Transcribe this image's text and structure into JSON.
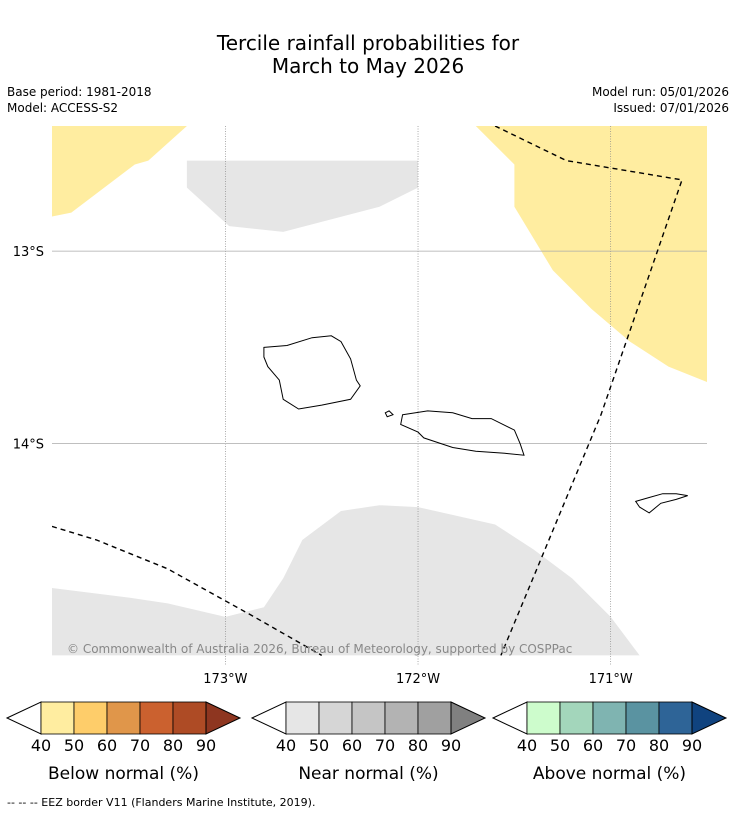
{
  "header": {
    "title_line1": "Tercile rainfall probabilities for",
    "title_line2": "March to May 2026",
    "base_period": "Base period: 1981-2018",
    "model": "Model: ACCESS-S2",
    "model_run": "Model run: 05/01/2026",
    "issued": "Issued: 07/01/2026"
  },
  "copyright": "© Commonwealth of Australia 2026, Bureau of Meteorology, supported by COSPPac",
  "footnote": "--  --  -- EEZ border V11 (Flanders Marine Institute, 2019).",
  "colors": {
    "land_outline": "#000000",
    "grid": "#888888",
    "eez": "#000000",
    "below_50": "#ffeda0",
    "near_40": "#e6e6e6"
  },
  "chart_data": {
    "type": "map",
    "title": "Tercile rainfall probabilities for March to May 2026",
    "region": "Samoa and American Samoa",
    "lon_range": [
      -173.9,
      -170.5
    ],
    "lat_range": [
      -12.35,
      -15.15
    ],
    "xticks": [
      {
        "lon": -173,
        "label": "173°W"
      },
      {
        "lon": -172,
        "label": "172°W"
      },
      {
        "lon": -171,
        "label": "171°W"
      }
    ],
    "yticks": [
      {
        "lat": -13,
        "label": "13°S"
      },
      {
        "lat": -14,
        "label": "14°S"
      }
    ],
    "probability_regions": [
      {
        "name": "below-normal-50-north",
        "category": "Below normal",
        "level": "40-50%",
        "poly": [
          [
            -173.9,
            -12.35
          ],
          [
            -173.2,
            -12.35
          ],
          [
            -173.4,
            -12.53
          ],
          [
            -173.47,
            -12.55
          ],
          [
            -173.8,
            -12.8
          ],
          [
            -173.9,
            -12.82
          ]
        ]
      },
      {
        "name": "below-normal-50-northeast",
        "category": "Below normal",
        "level": "40-50%",
        "poly": [
          [
            -172.6,
            -12.35
          ],
          [
            -171.9,
            -12.35
          ],
          [
            -171.7,
            -12.35
          ],
          [
            -171.5,
            -12.55
          ],
          [
            -171.5,
            -12.77
          ],
          [
            -171.3,
            -13.1
          ],
          [
            -171.1,
            -13.3
          ],
          [
            -170.9,
            -13.47
          ],
          [
            -170.7,
            -13.6
          ],
          [
            -170.5,
            -13.68
          ],
          [
            -170.5,
            -12.35
          ]
        ]
      },
      {
        "name": "near-normal-40-north",
        "category": "Near normal",
        "level": "40-50%",
        "poly": [
          [
            -173.2,
            -12.53
          ],
          [
            -172.0,
            -12.53
          ],
          [
            -172.0,
            -12.67
          ],
          [
            -172.2,
            -12.77
          ],
          [
            -172.7,
            -12.9
          ],
          [
            -172.98,
            -12.87
          ],
          [
            -173.2,
            -12.67
          ]
        ]
      },
      {
        "name": "near-normal-40-south",
        "category": "Near normal",
        "level": "40-50%",
        "poly": [
          [
            -173.9,
            -15.1
          ],
          [
            -173.9,
            -14.75
          ],
          [
            -173.5,
            -14.8
          ],
          [
            -173.3,
            -14.83
          ],
          [
            -173.0,
            -14.9
          ],
          [
            -172.8,
            -14.85
          ],
          [
            -172.7,
            -14.7
          ],
          [
            -172.6,
            -14.5
          ],
          [
            -172.4,
            -14.35
          ],
          [
            -172.2,
            -14.32
          ],
          [
            -172.0,
            -14.33
          ],
          [
            -171.6,
            -14.42
          ],
          [
            -171.4,
            -14.55
          ],
          [
            -171.2,
            -14.7
          ],
          [
            -171.0,
            -14.9
          ],
          [
            -170.85,
            -15.1
          ],
          [
            -173.9,
            -15.1
          ]
        ]
      }
    ],
    "islands": [
      {
        "name": "savaii",
        "poly": [
          [
            -172.8,
            -13.5
          ],
          [
            -172.68,
            -13.49
          ],
          [
            -172.55,
            -13.45
          ],
          [
            -172.45,
            -13.44
          ],
          [
            -172.4,
            -13.47
          ],
          [
            -172.35,
            -13.56
          ],
          [
            -172.32,
            -13.67
          ],
          [
            -172.3,
            -13.7
          ],
          [
            -172.35,
            -13.77
          ],
          [
            -172.5,
            -13.8
          ],
          [
            -172.62,
            -13.82
          ],
          [
            -172.7,
            -13.77
          ],
          [
            -172.72,
            -13.67
          ],
          [
            -172.78,
            -13.6
          ],
          [
            -172.8,
            -13.55
          ]
        ]
      },
      {
        "name": "upolu",
        "poly": [
          [
            -172.08,
            -13.85
          ],
          [
            -171.95,
            -13.83
          ],
          [
            -171.82,
            -13.84
          ],
          [
            -171.72,
            -13.87
          ],
          [
            -171.62,
            -13.87
          ],
          [
            -171.5,
            -13.93
          ],
          [
            -171.47,
            -14.0
          ],
          [
            -171.45,
            -14.06
          ],
          [
            -171.55,
            -14.05
          ],
          [
            -171.7,
            -14.04
          ],
          [
            -171.82,
            -14.02
          ],
          [
            -171.97,
            -13.97
          ],
          [
            -172.0,
            -13.94
          ],
          [
            -172.09,
            -13.9
          ]
        ]
      },
      {
        "name": "manono-apolima",
        "poly": [
          [
            -172.17,
            -13.84
          ],
          [
            -172.15,
            -13.83
          ],
          [
            -172.13,
            -13.85
          ],
          [
            -172.16,
            -13.86
          ]
        ]
      },
      {
        "name": "tutuila",
        "poly": [
          [
            -170.87,
            -14.3
          ],
          [
            -170.8,
            -14.28
          ],
          [
            -170.73,
            -14.26
          ],
          [
            -170.66,
            -14.26
          ],
          [
            -170.6,
            -14.27
          ],
          [
            -170.66,
            -14.29
          ],
          [
            -170.74,
            -14.31
          ],
          [
            -170.8,
            -14.36
          ],
          [
            -170.85,
            -14.33
          ]
        ]
      }
    ],
    "eez_lines": [
      {
        "name": "eez-samoa-as",
        "points": [
          [
            -171.6,
            -12.35
          ],
          [
            -171.23,
            -12.53
          ],
          [
            -170.63,
            -12.63
          ],
          [
            -171.05,
            -13.85
          ],
          [
            -171.57,
            -15.1
          ]
        ]
      },
      {
        "name": "eez-tonga",
        "points": [
          [
            -173.9,
            -14.43
          ],
          [
            -173.67,
            -14.5
          ],
          [
            -173.3,
            -14.65
          ],
          [
            -172.85,
            -14.9
          ],
          [
            -172.5,
            -15.1
          ]
        ]
      }
    ],
    "legends": [
      {
        "title": "Below normal (%)",
        "tick_labels": [
          "40",
          "50",
          "60",
          "70",
          "80",
          "90"
        ],
        "colors": [
          "#ffffff",
          "#ffeda0",
          "#fecd6a",
          "#e0964a",
          "#cb612f",
          "#ae4b25",
          "#8e3620"
        ]
      },
      {
        "title": "Near normal (%)",
        "tick_labels": [
          "40",
          "50",
          "60",
          "70",
          "80",
          "90"
        ],
        "colors": [
          "#ffffff",
          "#e6e6e6",
          "#d6d6d6",
          "#c5c5c5",
          "#b3b3b3",
          "#a0a0a0",
          "#808080"
        ]
      },
      {
        "title": "Above normal (%)",
        "tick_labels": [
          "40",
          "50",
          "60",
          "70",
          "80",
          "90"
        ],
        "colors": [
          "#ffffff",
          "#cdfccc",
          "#a3d6bb",
          "#7fb4b1",
          "#5a93a1",
          "#2e6497",
          "#10437f"
        ]
      }
    ]
  }
}
